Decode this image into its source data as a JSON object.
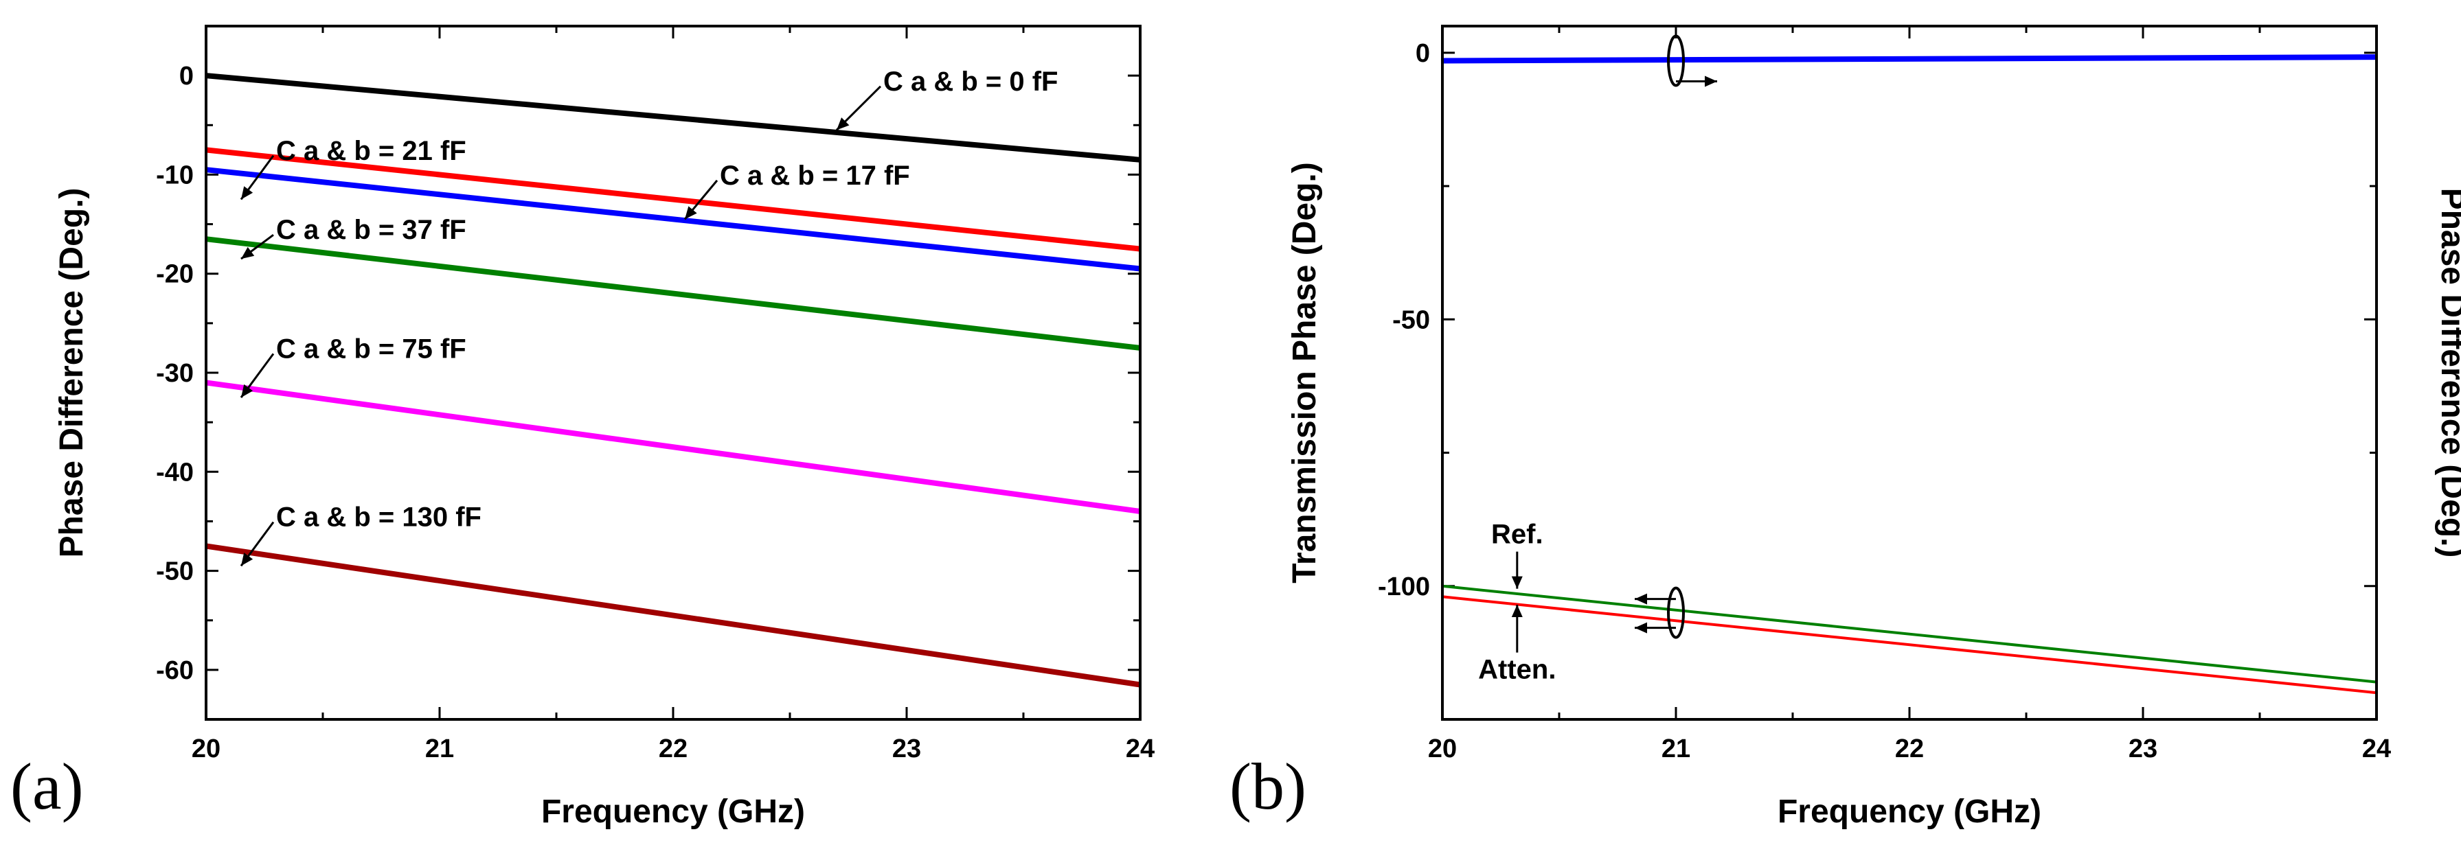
{
  "chart_data": [
    {
      "type": "line",
      "panel_label": "(a)",
      "xlabel": "Frequency (GHz)",
      "ylabel": "Phase Difference (Deg.)",
      "xlim": [
        20,
        24
      ],
      "ylim": [
        -65,
        5
      ],
      "x_ticks": [
        "20",
        "21",
        "22",
        "23",
        "24"
      ],
      "x_tick_values": [
        20,
        21,
        22,
        23,
        24
      ],
      "y_ticks": [
        "0",
        "-10",
        "-20",
        "-30",
        "-40",
        "-50",
        "-60"
      ],
      "y_tick_values": [
        0,
        -10,
        -20,
        -30,
        -40,
        -50,
        -60
      ],
      "series": [
        {
          "name": "C a & b = 0 fF",
          "color": "#000000",
          "x": [
            20,
            24
          ],
          "y": [
            0,
            -8.5
          ]
        },
        {
          "name": "C a & b = 21 fF",
          "color": "#ff0000",
          "x": [
            20,
            24
          ],
          "y": [
            -7.5,
            -17.5
          ]
        },
        {
          "name": "C a & b = 17 fF",
          "color": "#0000ff",
          "x": [
            20,
            24
          ],
          "y": [
            -9.5,
            -19.5
          ]
        },
        {
          "name": "C a & b = 37 fF",
          "color": "#008000",
          "x": [
            20,
            24
          ],
          "y": [
            -16.5,
            -27.5
          ]
        },
        {
          "name": "C a & b = 75 fF",
          "color": "#ff00ff",
          "x": [
            20,
            24
          ],
          "y": [
            -31,
            -44
          ]
        },
        {
          "name": "C a & b = 130 fF",
          "color": "#a00000",
          "x": [
            20,
            24
          ],
          "y": [
            -47.5,
            -61.5
          ]
        }
      ],
      "annotations": [
        {
          "text": "C a & b = 0 fF",
          "x": 22.9,
          "y": -1.5,
          "target": [
            22.7,
            -5.5
          ]
        },
        {
          "text": "C a & b = 21 fF",
          "x": 20.3,
          "y": -8.5,
          "target": [
            20.15,
            -12.5
          ]
        },
        {
          "text": "C a & b = 17 fF",
          "x": 22.2,
          "y": -11.0,
          "target": [
            22.05,
            -14.5
          ]
        },
        {
          "text": "C a & b = 37 fF",
          "x": 20.3,
          "y": -16.5,
          "target": [
            20.15,
            -18.5
          ]
        },
        {
          "text": "C a & b = 75 fF",
          "x": 20.3,
          "y": -28.5,
          "target": [
            20.15,
            -32.5
          ]
        },
        {
          "text": "C a & b = 130 fF",
          "x": 20.3,
          "y": -45.5,
          "target": [
            20.15,
            -49.5
          ]
        }
      ]
    },
    {
      "type": "line",
      "panel_label": "(b)",
      "xlabel": "Frequency (GHz)",
      "ylabel": "Transmission Phase (Deg.)",
      "ylabel_right": "Phase Difference (Deg.)",
      "xlim": [
        20,
        24
      ],
      "ylim": [
        -125,
        5
      ],
      "x_ticks": [
        "20",
        "21",
        "22",
        "23",
        "24"
      ],
      "x_tick_values": [
        20,
        21,
        22,
        23,
        24
      ],
      "y_ticks": [
        "0",
        "-50",
        "-100"
      ],
      "y_tick_values": [
        0,
        -50,
        -100
      ],
      "series": [
        {
          "name": "Ref.",
          "color": "#008000",
          "axis": "left",
          "x": [
            20,
            24
          ],
          "y": [
            -100,
            -118
          ]
        },
        {
          "name": "Atten.",
          "color": "#ff0000",
          "axis": "left",
          "x": [
            20,
            24
          ],
          "y": [
            -102,
            -120
          ]
        },
        {
          "name": "Phase Difference",
          "color": "#0000ff",
          "axis": "right",
          "x": [
            20,
            24
          ],
          "y": [
            -1.5,
            -0.8
          ]
        }
      ],
      "annotations": [
        {
          "text": "Ref.",
          "x": 20.32,
          "y": -92,
          "target": [
            20.32,
            -100.5
          ]
        },
        {
          "text": "Atten.",
          "x": 20.32,
          "y": -113.5,
          "target": [
            20.32,
            -103.5
          ]
        }
      ]
    }
  ]
}
